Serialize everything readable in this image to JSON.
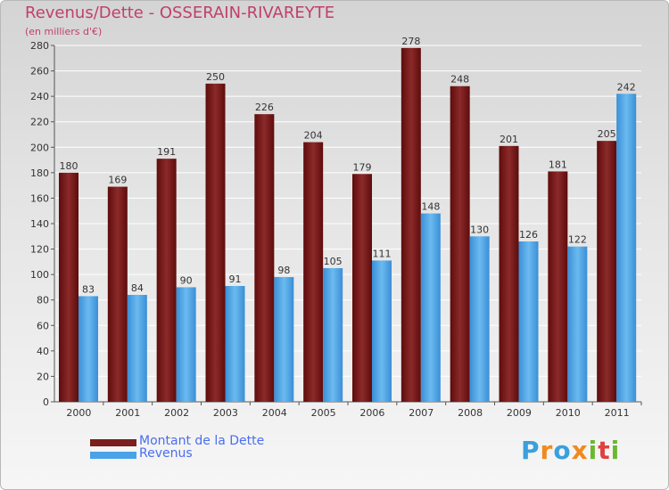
{
  "chart_data": {
    "type": "bar",
    "title": "Revenus/Dette - OSSERAIN-RIVAREYTE",
    "subtitle": "(en milliers d'€)",
    "categories": [
      "2000",
      "2001",
      "2002",
      "2003",
      "2004",
      "2005",
      "2006",
      "2007",
      "2008",
      "2009",
      "2010",
      "2011"
    ],
    "series": [
      {
        "name": "Montant de la Dette",
        "color": "#7a1e1e",
        "values": [
          180,
          169,
          191,
          250,
          226,
          204,
          179,
          278,
          248,
          201,
          181,
          205
        ]
      },
      {
        "name": "Revenus",
        "color": "#4aa3e8",
        "values": [
          83,
          84,
          90,
          91,
          98,
          105,
          111,
          148,
          130,
          126,
          122,
          242
        ]
      }
    ],
    "ylim": [
      0,
      280
    ],
    "yticks": [
      0,
      20,
      40,
      60,
      80,
      100,
      120,
      140,
      160,
      180,
      200,
      220,
      240,
      260,
      280
    ],
    "grid": true,
    "legend_position": "bottom-left"
  },
  "logo": {
    "letters": [
      "P",
      "r",
      "o",
      "x",
      "i",
      "t",
      "i"
    ],
    "colors": [
      "#3aa0dc",
      "#f08a20",
      "#3aa0dc",
      "#f08a20",
      "#6ab830",
      "#e04040",
      "#6ab830"
    ]
  }
}
